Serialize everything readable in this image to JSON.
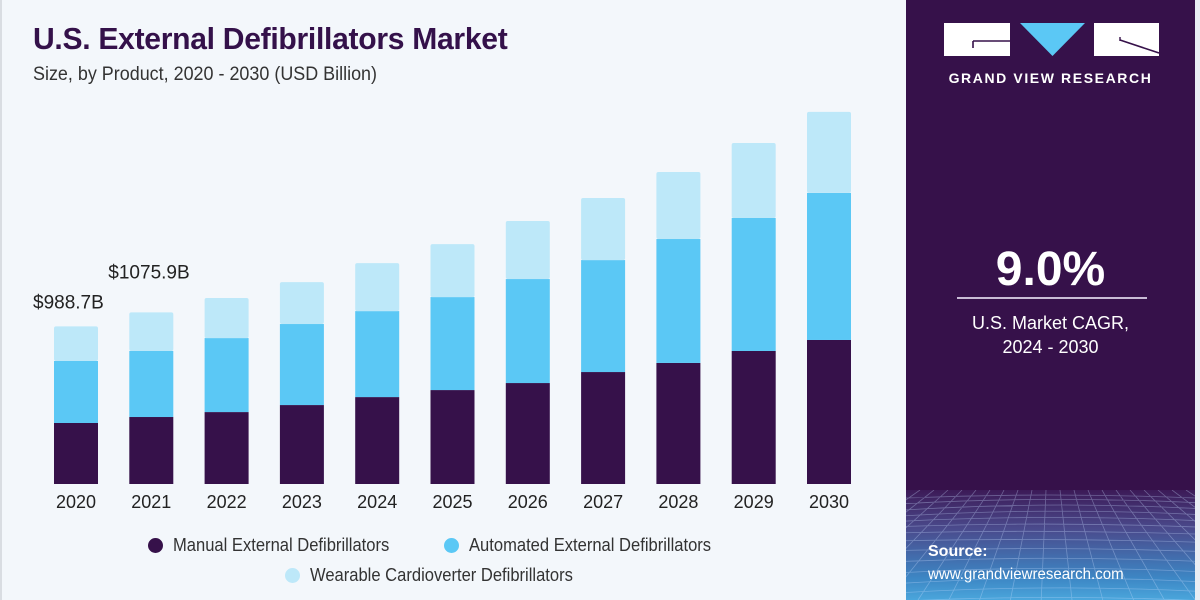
{
  "header": {
    "title": "U.S. External Defibrillators Market",
    "subtitle": "Size, by Product, 2020 - 2030 (USD Billion)"
  },
  "chart_data": {
    "type": "bar",
    "stacked": true,
    "title": "U.S. External Defibrillators Market",
    "subtitle": "Size, by Product, 2020 - 2030 (USD Billion)",
    "xlabel": "",
    "ylabel": "USD Billion",
    "categories": [
      "2020",
      "2021",
      "2022",
      "2023",
      "2024",
      "2025",
      "2026",
      "2027",
      "2028",
      "2029",
      "2030"
    ],
    "series": [
      {
        "name": "Manual External Defibrillators",
        "color": "#36114a",
        "values": [
          382.5,
          420.0,
          451,
          495,
          545,
          589,
          633,
          702,
          759,
          834,
          903
        ]
      },
      {
        "name": "Automated External Defibrillators",
        "color": "#5bc8f5",
        "values": [
          388.7,
          414.0,
          464,
          508,
          539,
          583,
          652,
          702,
          777,
          834,
          922
        ]
      },
      {
        "name": "Wearable Cardioverter Defibrillators",
        "color": "#bde8f9",
        "values": [
          217.5,
          241.9,
          251,
          263,
          301,
          332,
          364,
          389,
          420,
          470,
          508
        ]
      }
    ],
    "data_labels": [
      {
        "category": "2020",
        "text": "$988.7B"
      },
      {
        "category": "2021",
        "text": "$1075.9B"
      }
    ],
    "ylim": [
      0,
      2500
    ],
    "grid": false,
    "y_axis_visible": false,
    "legend_position": "bottom"
  },
  "legend": {
    "items": [
      {
        "label": "Manual External Defibrillators",
        "color": "#36114a"
      },
      {
        "label": "Automated External Defibrillators",
        "color": "#5bc8f5"
      },
      {
        "label": "Wearable Cardioverter Defibrillators",
        "color": "#bde8f9"
      }
    ]
  },
  "panel": {
    "brand": "GRAND VIEW RESEARCH",
    "logo_icon": "gvr-logo-icon",
    "cagr_value": "9.0%",
    "cagr_label_line1": "U.S. Market CAGR,",
    "cagr_label_line2": "2024 - 2030",
    "source_title": "Source:",
    "source_url": "www.grandviewresearch.com",
    "background_color": "#36114a",
    "accent_color": "#5bc8f5"
  }
}
